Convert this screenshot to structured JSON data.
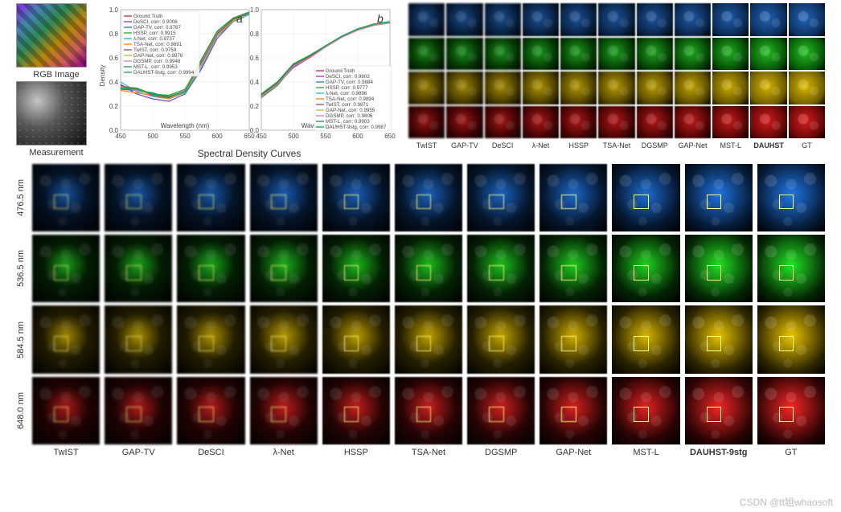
{
  "watermark": "CSDN @tt姐whaosoft",
  "top_left": {
    "rgb_label": "RGB Image",
    "meas_label": "Measurement"
  },
  "charts": {
    "title": "Spectral Density Curves",
    "xlabel": "Wavelength (nm)",
    "ylabel": "Density",
    "xlim": [
      450,
      650
    ],
    "xticks": [
      450,
      500,
      550,
      600,
      650
    ],
    "ylim": [
      0,
      1.0
    ],
    "yticks": [
      0,
      0.2,
      0.4,
      0.6,
      0.8,
      1.0
    ],
    "background_color": "#ffffff",
    "grid_color": "#e9e9e9",
    "axis_color": "#555555",
    "font_size_axis": 8,
    "line_width": 1.2,
    "panel_a": "a",
    "panel_b": "b",
    "legend_a": [
      {
        "label": "Ground Truth",
        "corr": null,
        "color": "#d62728"
      },
      {
        "label": "DeSCI",
        "corr": "0.9006",
        "color": "#7f3fbf"
      },
      {
        "label": "GAP-TV",
        "corr": "0.9767",
        "color": "#1f77b4"
      },
      {
        "label": "HSSP",
        "corr": "0.9915",
        "color": "#2ca02c"
      },
      {
        "label": "λ-Net",
        "corr": "0.9737",
        "color": "#17becf"
      },
      {
        "label": "TSA-Net",
        "corr": "0.9691",
        "color": "#ff7f0e"
      },
      {
        "label": "TwIST",
        "corr": "0.9759",
        "color": "#8c564b"
      },
      {
        "label": "GAP-Net",
        "corr": "0.9978",
        "color": "#bcbd22"
      },
      {
        "label": "DGSMP",
        "corr": "0.9948",
        "color": "#e377c2"
      },
      {
        "label": "MST-L",
        "corr": "0.9953",
        "color": "#2e8b57"
      },
      {
        "label": "DAUHST-9stg",
        "corr": "0.9994",
        "color": "#00b140"
      }
    ],
    "legend_b": [
      {
        "label": "Ground Truth",
        "corr": null,
        "color": "#d62728"
      },
      {
        "label": "DeSCI",
        "corr": "0.9803",
        "color": "#7f3fbf"
      },
      {
        "label": "GAP-TV",
        "corr": "0.9884",
        "color": "#1f77b4"
      },
      {
        "label": "HSSP",
        "corr": "0.9777",
        "color": "#2ca02c"
      },
      {
        "label": "λ-Net",
        "corr": "0.9896",
        "color": "#17becf"
      },
      {
        "label": "TSA-Net",
        "corr": "0.9894",
        "color": "#ff7f0e"
      },
      {
        "label": "TwIST",
        "corr": "0.9871",
        "color": "#8c564b"
      },
      {
        "label": "GAP-Net",
        "corr": "0.9955",
        "color": "#bcbd22"
      },
      {
        "label": "DGSMP",
        "corr": "0.9806",
        "color": "#e377c2"
      },
      {
        "label": "MST-L",
        "corr": "0.9903",
        "color": "#2e8b57"
      },
      {
        "label": "DAUHST-9stg",
        "corr": "0.9987",
        "color": "#00b140"
      }
    ],
    "curves_a_y": {
      "at_x": [
        450,
        475,
        500,
        525,
        550,
        575,
        600,
        625,
        650
      ],
      "series": {
        "Ground Truth": [
          0.35,
          0.34,
          0.3,
          0.28,
          0.32,
          0.58,
          0.82,
          0.93,
          0.98
        ],
        "DeSCI": [
          0.38,
          0.3,
          0.26,
          0.24,
          0.3,
          0.5,
          0.76,
          0.9,
          0.96
        ],
        "GAP-TV": [
          0.34,
          0.33,
          0.31,
          0.27,
          0.33,
          0.55,
          0.8,
          0.92,
          0.97
        ],
        "HSSP": [
          0.36,
          0.35,
          0.3,
          0.29,
          0.34,
          0.57,
          0.81,
          0.92,
          0.97
        ],
        "λ-Net": [
          0.4,
          0.32,
          0.28,
          0.26,
          0.31,
          0.52,
          0.78,
          0.9,
          0.96
        ],
        "TSA-Net": [
          0.33,
          0.31,
          0.29,
          0.26,
          0.32,
          0.54,
          0.79,
          0.91,
          0.97
        ],
        "TwIST": [
          0.37,
          0.34,
          0.29,
          0.27,
          0.33,
          0.56,
          0.8,
          0.92,
          0.97
        ],
        "GAP-Net": [
          0.35,
          0.34,
          0.3,
          0.28,
          0.33,
          0.58,
          0.82,
          0.93,
          0.98
        ],
        "DGSMP": [
          0.36,
          0.33,
          0.3,
          0.28,
          0.33,
          0.57,
          0.81,
          0.93,
          0.98
        ],
        "MST-L": [
          0.35,
          0.34,
          0.3,
          0.28,
          0.32,
          0.58,
          0.82,
          0.93,
          0.98
        ],
        "DAUHST-9stg": [
          0.35,
          0.34,
          0.3,
          0.28,
          0.32,
          0.58,
          0.82,
          0.93,
          0.98
        ]
      }
    },
    "curves_b_y": {
      "at_x": [
        450,
        475,
        500,
        525,
        550,
        575,
        600,
        625,
        650
      ],
      "series": {
        "Ground Truth": [
          0.3,
          0.4,
          0.55,
          0.62,
          0.7,
          0.78,
          0.84,
          0.88,
          0.9
        ],
        "DeSCI": [
          0.28,
          0.38,
          0.52,
          0.6,
          0.69,
          0.77,
          0.83,
          0.87,
          0.89
        ],
        "GAP-TV": [
          0.29,
          0.39,
          0.54,
          0.61,
          0.7,
          0.78,
          0.84,
          0.88,
          0.9
        ],
        "HSSP": [
          0.27,
          0.37,
          0.53,
          0.6,
          0.69,
          0.77,
          0.83,
          0.87,
          0.89
        ],
        "λ-Net": [
          0.3,
          0.4,
          0.55,
          0.62,
          0.7,
          0.78,
          0.84,
          0.88,
          0.9
        ],
        "TSA-Net": [
          0.3,
          0.4,
          0.55,
          0.62,
          0.7,
          0.78,
          0.84,
          0.88,
          0.9
        ],
        "TwIST": [
          0.29,
          0.39,
          0.54,
          0.61,
          0.7,
          0.78,
          0.84,
          0.88,
          0.9
        ],
        "GAP-Net": [
          0.3,
          0.4,
          0.55,
          0.62,
          0.7,
          0.78,
          0.84,
          0.88,
          0.9
        ],
        "DGSMP": [
          0.28,
          0.38,
          0.53,
          0.6,
          0.69,
          0.77,
          0.83,
          0.87,
          0.89
        ],
        "MST-L": [
          0.3,
          0.4,
          0.55,
          0.62,
          0.7,
          0.78,
          0.84,
          0.88,
          0.9
        ],
        "DAUHST-9stg": [
          0.3,
          0.4,
          0.55,
          0.62,
          0.7,
          0.78,
          0.84,
          0.88,
          0.9
        ]
      }
    }
  },
  "mini": {
    "row_colors": [
      "#0b2b55",
      "#064d06",
      "#665500",
      "#5a0606"
    ],
    "tints": [
      "#1e5aa6",
      "#1fae1f",
      "#c7a700",
      "#c31a1a"
    ],
    "methods": [
      "TwIST",
      "GAP-TV",
      "DeSCI",
      "λ-Net",
      "HSSP",
      "TSA-Net",
      "DGSMP",
      "GAP-Net",
      "MST-L",
      "DAUHST",
      "GT"
    ],
    "bold_index": 9,
    "sharpness_col": [
      0.25,
      0.3,
      0.35,
      0.45,
      0.5,
      0.55,
      0.6,
      0.7,
      0.8,
      0.95,
      1.0
    ]
  },
  "big": {
    "rows": [
      {
        "label": "476.5 nm",
        "base": "#051830",
        "tint": "#1d6bd1"
      },
      {
        "label": "536.5 nm",
        "base": "#042404",
        "tint": "#1fd11f"
      },
      {
        "label": "584.5 nm",
        "base": "#2a2300",
        "tint": "#d6b400"
      },
      {
        "label": "648.0 nm",
        "base": "#2a0404",
        "tint": "#e02222"
      }
    ],
    "methods": [
      "TwIST",
      "GAP-TV",
      "DeSCI",
      "λ-Net",
      "HSSP",
      "TSA-Net",
      "DGSMP",
      "GAP-Net",
      "MST-L",
      "DAUHST-9stg",
      "GT"
    ],
    "bold_index": 9,
    "roi_color": "#fffd7a",
    "sharpness_col": [
      0.25,
      0.3,
      0.35,
      0.45,
      0.5,
      0.55,
      0.6,
      0.7,
      0.8,
      0.95,
      1.0
    ]
  }
}
